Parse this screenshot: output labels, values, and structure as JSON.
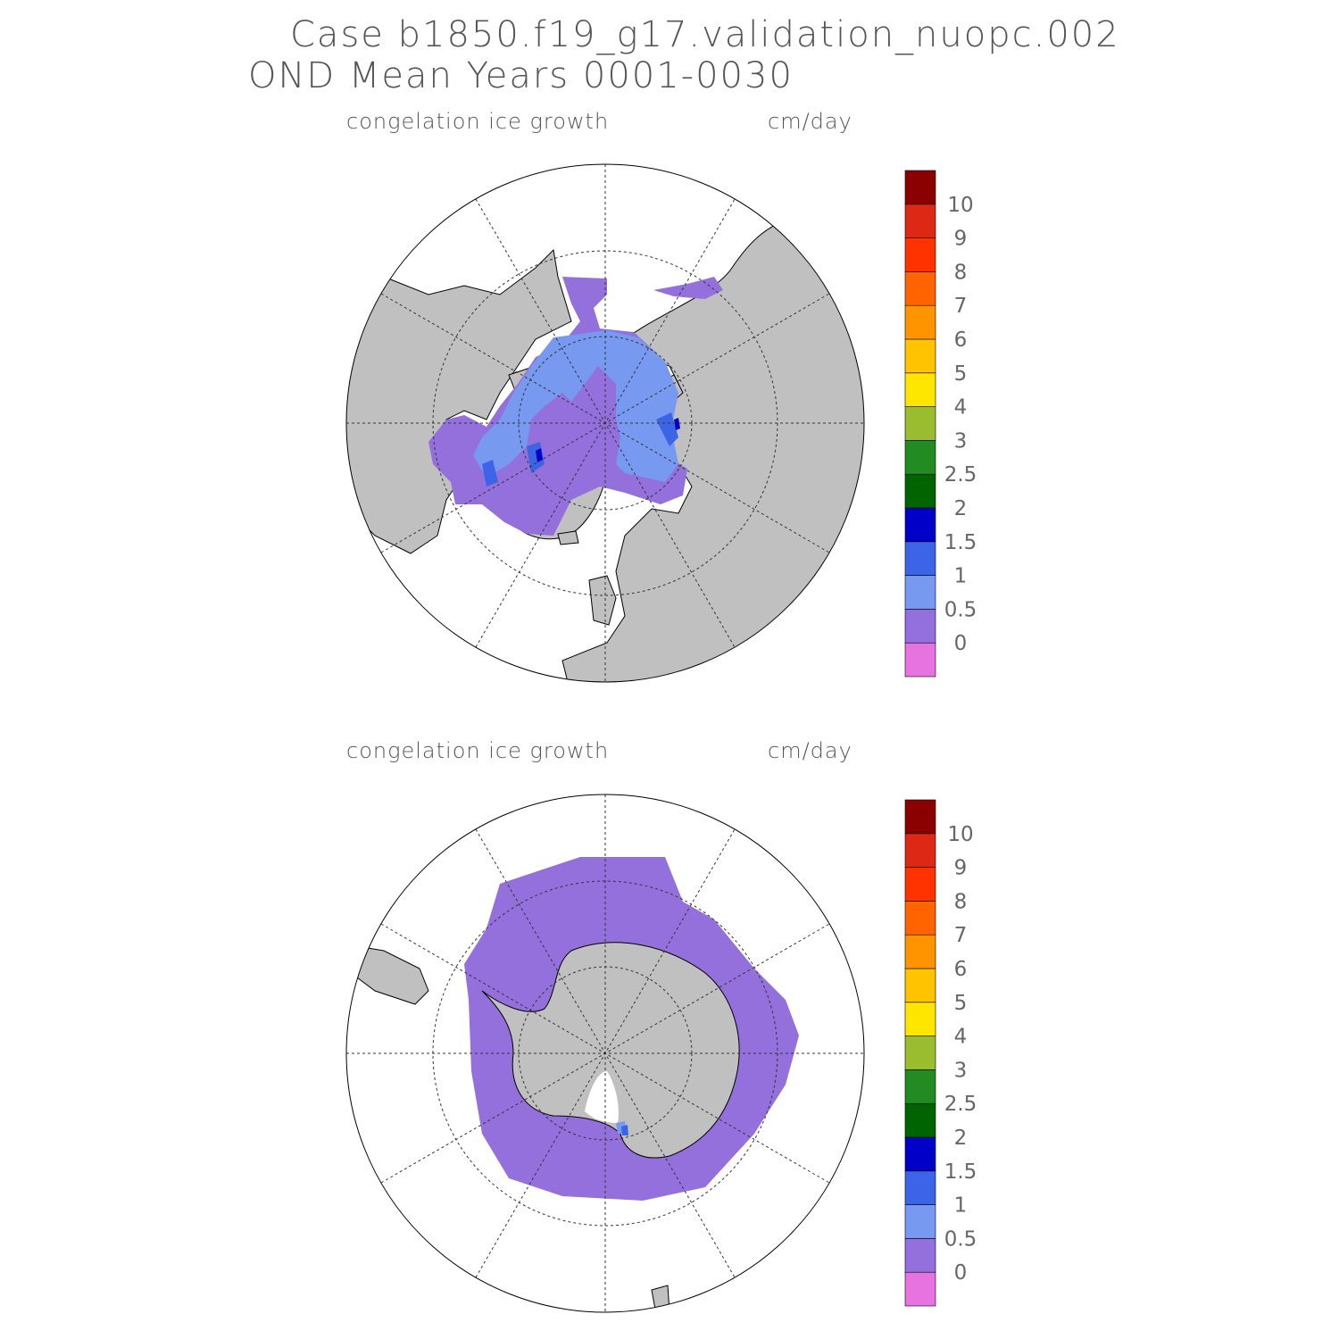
{
  "title": {
    "line1": "Case b1850.f19_g17.validation_nuopc.002",
    "line2": "OND Mean    Years 0001-0030"
  },
  "panels": [
    {
      "id": "north",
      "variable": "congelation ice growth",
      "units": "cm/day"
    },
    {
      "id": "south",
      "variable": "congelation ice growth",
      "units": "cm/day"
    }
  ],
  "colorbar": {
    "levels": [
      "0",
      "0.5",
      "1",
      "1.5",
      "2",
      "2.5",
      "3",
      "4",
      "5",
      "6",
      "7",
      "8",
      "9",
      "10"
    ],
    "colors": [
      "#e673e0",
      "#9370db",
      "#7799f0",
      "#3c64e6",
      "#0000c8",
      "#006400",
      "#228b22",
      "#9abd30",
      "#ffe600",
      "#ffc300",
      "#ff9400",
      "#ff6400",
      "#ff3200",
      "#dc2814",
      "#8b0000"
    ]
  },
  "map_colors": {
    "land": "#c0c0c0",
    "ocean": "#ffffff",
    "ice_low": "#9370db",
    "ice_mid": "#7799f0",
    "ice_high": "#3c64e6",
    "ice_peak": "#0000c8"
  }
}
